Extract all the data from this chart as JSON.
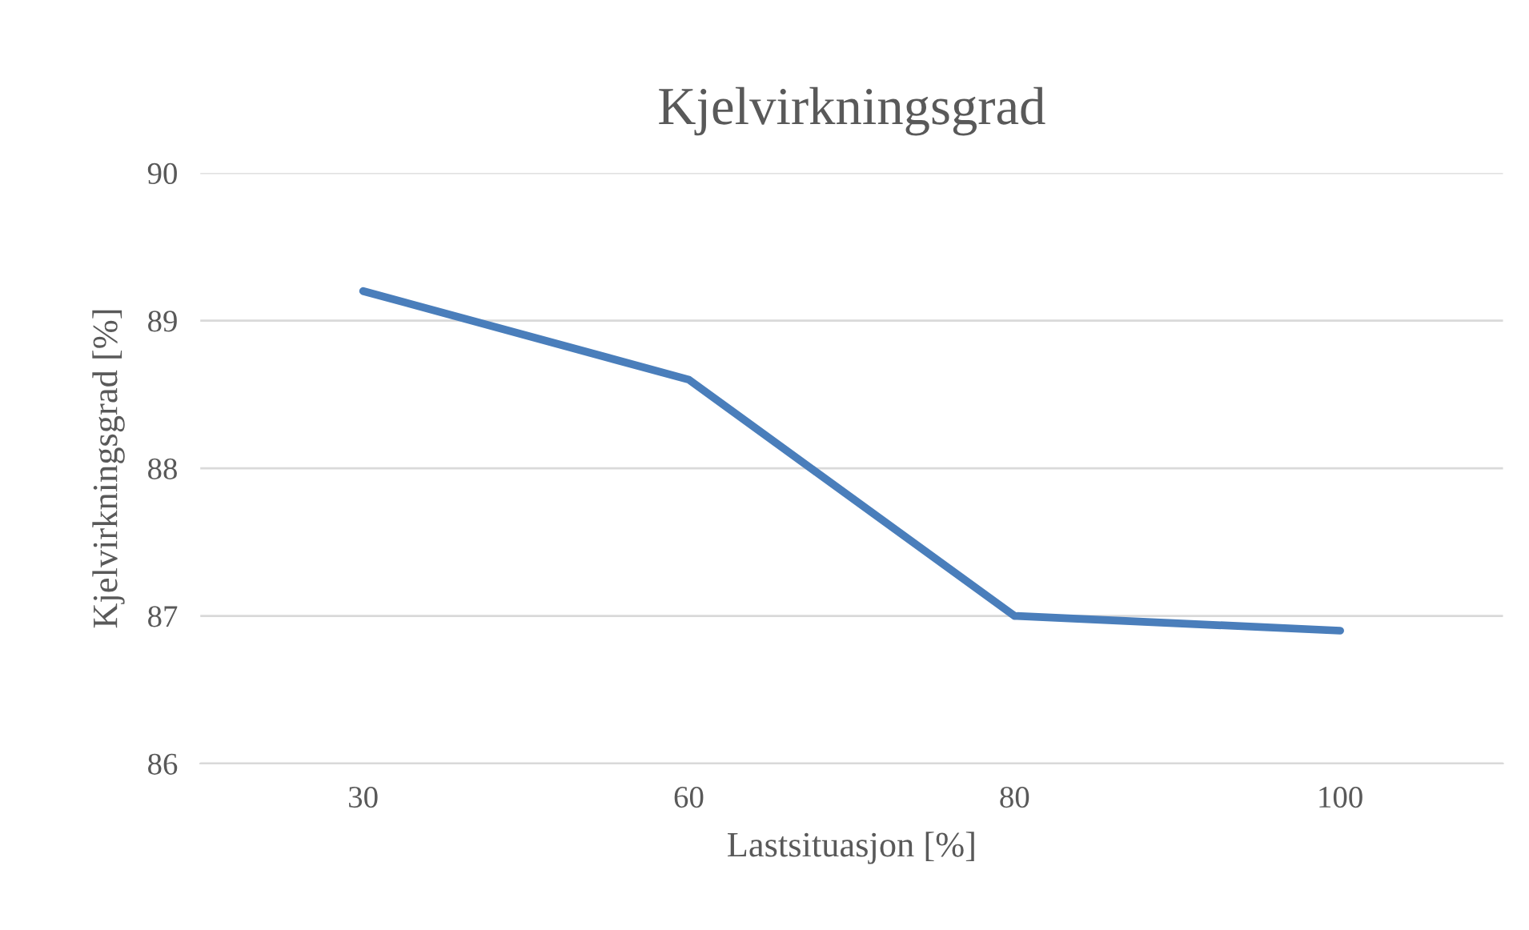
{
  "chart_data": {
    "type": "line",
    "title": "Kjelvirkningsgrad",
    "xlabel": "Lastsituasjon [%]",
    "ylabel": "Kjelvirkningsgrad [%]",
    "categories": [
      "30",
      "60",
      "80",
      "100"
    ],
    "series": [
      {
        "color": "#4a7ebb",
        "values": [
          89.2,
          88.6,
          87.0,
          86.9
        ]
      }
    ],
    "ylim": [
      86,
      90
    ],
    "yticks": [
      86,
      87,
      88,
      89,
      90
    ],
    "grid": "y",
    "legend": false,
    "marker": "none",
    "line_style": "solid"
  }
}
